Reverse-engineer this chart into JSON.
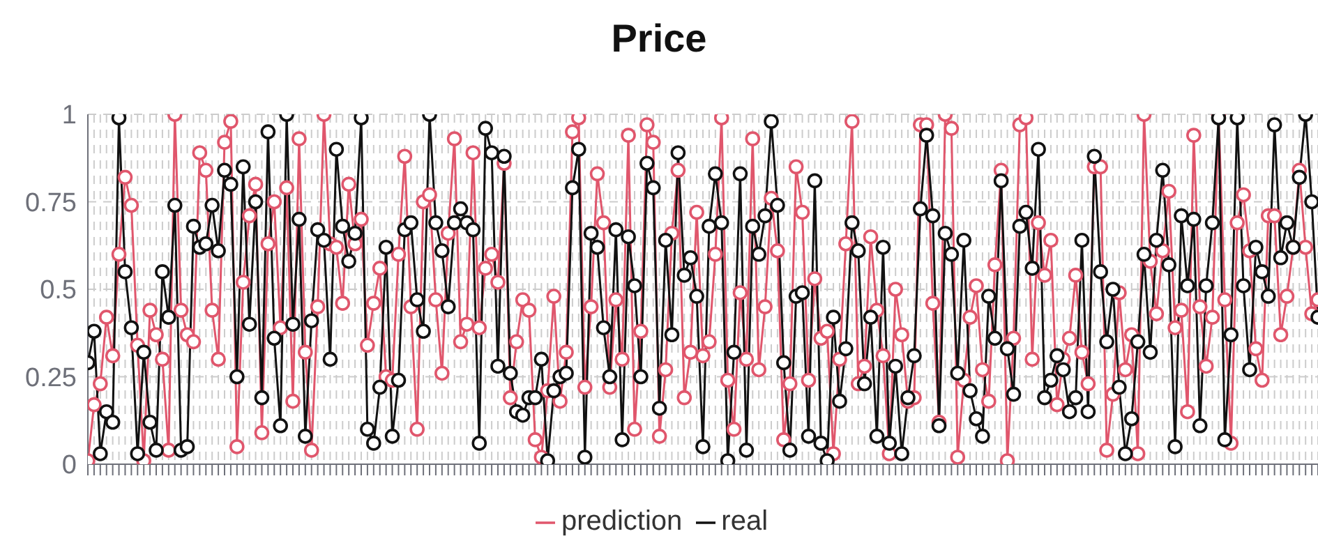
{
  "chart_data": {
    "type": "line",
    "title": "Price",
    "categories": [
      null,
      null,
      null,
      null,
      null,
      null,
      null,
      null,
      null,
      null,
      null,
      null,
      null,
      null,
      null,
      null,
      null,
      null,
      null,
      null,
      null,
      null,
      null,
      null,
      null,
      null,
      null,
      null,
      null,
      null,
      null,
      null,
      null,
      null,
      null,
      null,
      null,
      null,
      null,
      null,
      null,
      null,
      null,
      null,
      null,
      null,
      null,
      null,
      null,
      null,
      null,
      null,
      null,
      null,
      null,
      null,
      null,
      null,
      null,
      null,
      null,
      null,
      null,
      null,
      null,
      null,
      null,
      null,
      null,
      null,
      null,
      null,
      null,
      null,
      null,
      null,
      null,
      null,
      null,
      null,
      null,
      null,
      null,
      null,
      null,
      null,
      null,
      null,
      null,
      null,
      null,
      null,
      null,
      null,
      null,
      null,
      null,
      null,
      null,
      null,
      null,
      null,
      null,
      null,
      null,
      null,
      null,
      null,
      null,
      null,
      null,
      null,
      null,
      null,
      null,
      null,
      null,
      null,
      null,
      null,
      null,
      null,
      null,
      null,
      null,
      null,
      null,
      null,
      null,
      null,
      null,
      null,
      null,
      null,
      null,
      null,
      null,
      null,
      null,
      null,
      null,
      null,
      null,
      null,
      null,
      null,
      null,
      null,
      null,
      null,
      null,
      null,
      null,
      null,
      null,
      null,
      null,
      null,
      null,
      null,
      null,
      null,
      null,
      null,
      null,
      null,
      null,
      null,
      null,
      null,
      null,
      null,
      null,
      null,
      null,
      null,
      null,
      null,
      null,
      null,
      null,
      null,
      null,
      null,
      null,
      null,
      null,
      null,
      null,
      null,
      null,
      null,
      null,
      null,
      null,
      null,
      null,
      null,
      null
    ],
    "series": [
      {
        "name": "prediction",
        "color": "#e0566c",
        "values": [
          0.01,
          0.17,
          0.23,
          0.42,
          0.31,
          0.6,
          0.82,
          0.74,
          0.34,
          0.01,
          0.44,
          0.37,
          0.3,
          0.04,
          1.0,
          0.44,
          0.37,
          0.35,
          0.89,
          0.84,
          0.44,
          0.3,
          0.92,
          0.98,
          0.05,
          0.52,
          0.71,
          0.8,
          0.09,
          0.63,
          0.75,
          0.39,
          0.79,
          0.18,
          0.93,
          0.32,
          0.04,
          0.45,
          1.0,
          0.63,
          0.62,
          0.46,
          0.8,
          0.63,
          0.7,
          0.34,
          0.46,
          0.56,
          0.25,
          0.24,
          0.6,
          0.88,
          0.45,
          0.1,
          0.75,
          0.77,
          0.47,
          0.26,
          0.66,
          0.93,
          0.35,
          0.4,
          0.89,
          0.39,
          0.56,
          0.6,
          0.52,
          0.86,
          0.19,
          0.35,
          0.47,
          0.44,
          0.07,
          0.02,
          0.21,
          0.48,
          0.18,
          0.32,
          0.95,
          0.99,
          0.22,
          0.45,
          0.83,
          0.69,
          0.22,
          0.47,
          0.3,
          0.94,
          0.1,
          0.38,
          0.97,
          0.92,
          0.08,
          0.27,
          0.66,
          0.84,
          0.19,
          0.32,
          0.72,
          0.31,
          0.35,
          0.6,
          0.99,
          0.24,
          0.1,
          0.49,
          0.3,
          0.93,
          0.27,
          0.45,
          0.76,
          0.61,
          0.07,
          0.23,
          0.85,
          0.72,
          0.24,
          0.53,
          0.36,
          0.38,
          0.03,
          0.3,
          0.63,
          0.98,
          0.23,
          0.28,
          0.65,
          0.44,
          0.31,
          0.03,
          0.5,
          0.37,
          0.18,
          0.19,
          0.97,
          0.97,
          0.46,
          0.12,
          1.0,
          0.96,
          0.02,
          0.24,
          0.42,
          0.51,
          0.27,
          0.18,
          0.57,
          0.84,
          0.01,
          0.36,
          0.97,
          0.99,
          0.3,
          0.69,
          0.54,
          0.64,
          0.17,
          0.3,
          0.36,
          0.54,
          0.32,
          0.23,
          0.85,
          0.85,
          0.04,
          0.2,
          0.49,
          0.27,
          0.37,
          0.03,
          1.0,
          0.58,
          0.43,
          0.61,
          0.78,
          0.39,
          0.44,
          0.15,
          0.94,
          0.45,
          0.28,
          0.42,
          1.0,
          0.47,
          0.06,
          0.69,
          0.77,
          0.61,
          0.33,
          0.24,
          0.71,
          0.71,
          0.37,
          0.48,
          0.62,
          0.84,
          0.62,
          0.43,
          0.47
        ]
      },
      {
        "name": "real",
        "color": "#111111",
        "values": [
          0.29,
          0.38,
          0.03,
          0.15,
          0.12,
          0.99,
          0.55,
          0.39,
          0.03,
          0.32,
          0.12,
          0.04,
          0.55,
          0.42,
          0.74,
          0.04,
          0.05,
          0.68,
          0.62,
          0.63,
          0.74,
          0.61,
          0.84,
          0.8,
          0.25,
          0.85,
          0.4,
          0.75,
          0.19,
          0.95,
          0.36,
          0.11,
          1.0,
          0.4,
          0.7,
          0.08,
          0.41,
          0.67,
          0.64,
          0.3,
          0.9,
          0.68,
          0.58,
          0.66,
          0.99,
          0.1,
          0.06,
          0.22,
          0.62,
          0.08,
          0.24,
          0.67,
          0.69,
          0.47,
          0.38,
          1.0,
          0.69,
          0.61,
          0.45,
          0.69,
          0.73,
          0.69,
          0.67,
          0.06,
          0.96,
          0.89,
          0.28,
          0.88,
          0.26,
          0.15,
          0.14,
          0.19,
          0.19,
          0.3,
          0.01,
          0.21,
          0.25,
          0.26,
          0.79,
          0.9,
          0.02,
          0.66,
          0.62,
          0.39,
          0.25,
          0.67,
          0.07,
          0.65,
          0.51,
          0.25,
          0.86,
          0.79,
          0.16,
          0.64,
          0.37,
          0.89,
          0.54,
          0.59,
          0.48,
          0.05,
          0.68,
          0.83,
          0.69,
          0.01,
          0.32,
          0.83,
          0.04,
          0.68,
          0.6,
          0.71,
          0.98,
          0.74,
          0.29,
          0.04,
          0.48,
          0.49,
          0.08,
          0.81,
          0.06,
          0.01,
          0.42,
          0.18,
          0.33,
          0.69,
          0.61,
          0.23,
          0.42,
          0.08,
          0.62,
          0.06,
          0.28,
          0.03,
          0.19,
          0.31,
          0.73,
          0.94,
          0.71,
          0.11,
          0.66,
          0.6,
          0.26,
          0.64,
          0.21,
          0.13,
          0.08,
          0.48,
          0.36,
          0.81,
          0.33,
          0.2,
          0.68,
          0.72,
          0.56,
          0.9,
          0.19,
          0.24,
          0.31,
          0.27,
          0.15,
          0.19,
          0.64,
          0.15,
          0.88,
          0.55,
          0.35,
          0.5,
          0.22,
          0.03,
          0.13,
          0.35,
          0.6,
          0.32,
          0.64,
          0.84,
          0.57,
          0.05,
          0.71,
          0.51,
          0.7,
          0.11,
          0.51,
          0.69,
          0.99,
          0.07,
          0.37,
          0.99,
          0.51,
          0.27,
          0.62,
          0.55,
          0.48,
          0.97,
          0.59,
          0.69,
          0.62,
          0.82,
          1.0,
          0.75,
          0.42
        ]
      }
    ],
    "ylim": [
      0,
      1
    ],
    "yticks": [
      0,
      0.25,
      0.5,
      0.75,
      1
    ],
    "grid": true,
    "legend": "bottom",
    "marker": "circle",
    "line_style": "solid"
  }
}
